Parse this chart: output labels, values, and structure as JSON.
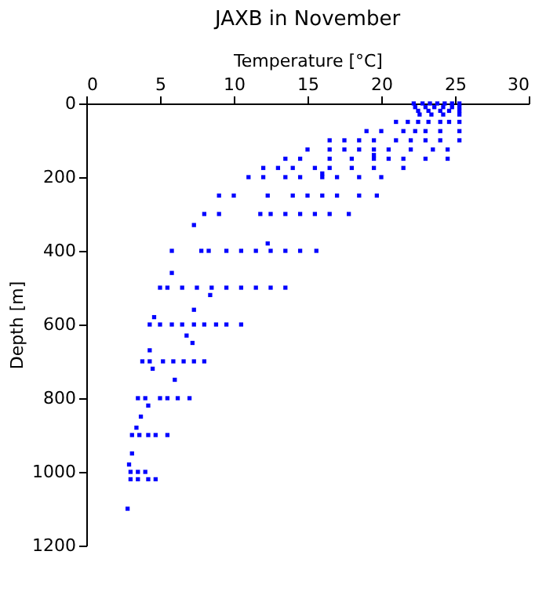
{
  "chart_data": {
    "type": "scatter",
    "title": "JAXB in November",
    "xlabel": "Temperature [°C]",
    "ylabel": "Depth [m]",
    "xlim": [
      0,
      30
    ],
    "xticks": [
      0,
      5,
      10,
      15,
      20,
      25,
      30
    ],
    "ylim": [
      1200,
      0
    ],
    "yticks": [
      0,
      200,
      400,
      600,
      800,
      1000,
      1200
    ],
    "grid": false,
    "marker": "square",
    "series": [
      {
        "color": "#0000ff",
        "x": [
          22.2,
          22.8,
          23.3,
          23.8,
          24.3,
          24.8,
          25.3,
          22.3,
          23,
          23.6,
          24.2,
          24.8,
          25.3,
          22.5,
          23.2,
          24,
          24.6,
          25.3,
          22.6,
          23.4,
          24.2,
          25.3,
          21,
          21.8,
          22.5,
          23.2,
          24,
          24.6,
          25.3,
          19,
          20,
          21.5,
          22.3,
          23,
          24,
          25.3,
          16.5,
          17.5,
          18.5,
          19.5,
          21,
          22,
          23,
          24,
          25.3,
          15,
          16.5,
          17.5,
          18.5,
          19.5,
          20.5,
          22,
          23.5,
          24.5,
          19.5,
          13.5,
          14.5,
          16.5,
          18,
          19.5,
          20.5,
          21.5,
          23,
          24.5,
          12,
          13,
          14,
          15.5,
          16.5,
          18,
          19.5,
          21.5,
          16,
          11,
          12,
          13.5,
          14.5,
          16,
          17,
          18.5,
          20,
          9,
          10,
          12.3,
          14,
          15,
          16,
          17,
          18.5,
          19.7,
          8,
          9,
          11.8,
          12.5,
          13.5,
          14.5,
          15.5,
          16.5,
          17.8,
          7.3,
          12.3,
          5.8,
          7.8,
          8.3,
          9.5,
          10.5,
          11.5,
          12.5,
          13.5,
          14.5,
          15.6,
          5.8,
          5,
          5.5,
          6.5,
          7.5,
          8.5,
          9.5,
          10.5,
          11.5,
          12.5,
          13.5,
          8.4,
          7.3,
          4.6,
          4.3,
          5,
          5.8,
          6.5,
          7.3,
          8,
          8.8,
          9.5,
          10.5,
          6.8,
          7.2,
          4.3,
          3.8,
          4.3,
          5.2,
          5.9,
          6.6,
          7.3,
          8,
          4.5,
          6,
          3.5,
          4,
          5,
          5.5,
          6.2,
          7,
          4.2,
          3.7,
          3.4,
          3.1,
          3.6,
          4.2,
          4.7,
          5.5,
          3.1,
          2.9,
          3,
          3.5,
          4,
          3,
          3.5,
          4.2,
          4.7,
          2.8
        ],
        "values": [
          0,
          0,
          0,
          0,
          0,
          0,
          0,
          10,
          10,
          10,
          10,
          10,
          10,
          20,
          20,
          20,
          20,
          20,
          30,
          30,
          30,
          30,
          50,
          50,
          50,
          50,
          50,
          50,
          50,
          75,
          75,
          75,
          75,
          75,
          75,
          75,
          100,
          100,
          100,
          100,
          100,
          100,
          100,
          100,
          100,
          125,
          125,
          125,
          125,
          125,
          125,
          125,
          125,
          125,
          140,
          150,
          150,
          150,
          150,
          150,
          150,
          150,
          150,
          150,
          175,
          175,
          175,
          175,
          175,
          175,
          175,
          175,
          190,
          200,
          200,
          200,
          200,
          200,
          200,
          200,
          200,
          250,
          250,
          250,
          250,
          250,
          250,
          250,
          250,
          250,
          300,
          300,
          300,
          300,
          300,
          300,
          300,
          300,
          300,
          330,
          380,
          400,
          400,
          400,
          400,
          400,
          400,
          400,
          400,
          400,
          400,
          460,
          500,
          500,
          500,
          500,
          500,
          500,
          500,
          500,
          500,
          500,
          520,
          560,
          580,
          600,
          600,
          600,
          600,
          600,
          600,
          600,
          600,
          600,
          630,
          650,
          670,
          700,
          700,
          700,
          700,
          700,
          700,
          700,
          720,
          750,
          800,
          800,
          800,
          800,
          800,
          800,
          820,
          850,
          880,
          900,
          900,
          900,
          900,
          900,
          950,
          980,
          1000,
          1000,
          1000,
          1020,
          1020,
          1020,
          1020,
          1100
        ]
      }
    ]
  }
}
